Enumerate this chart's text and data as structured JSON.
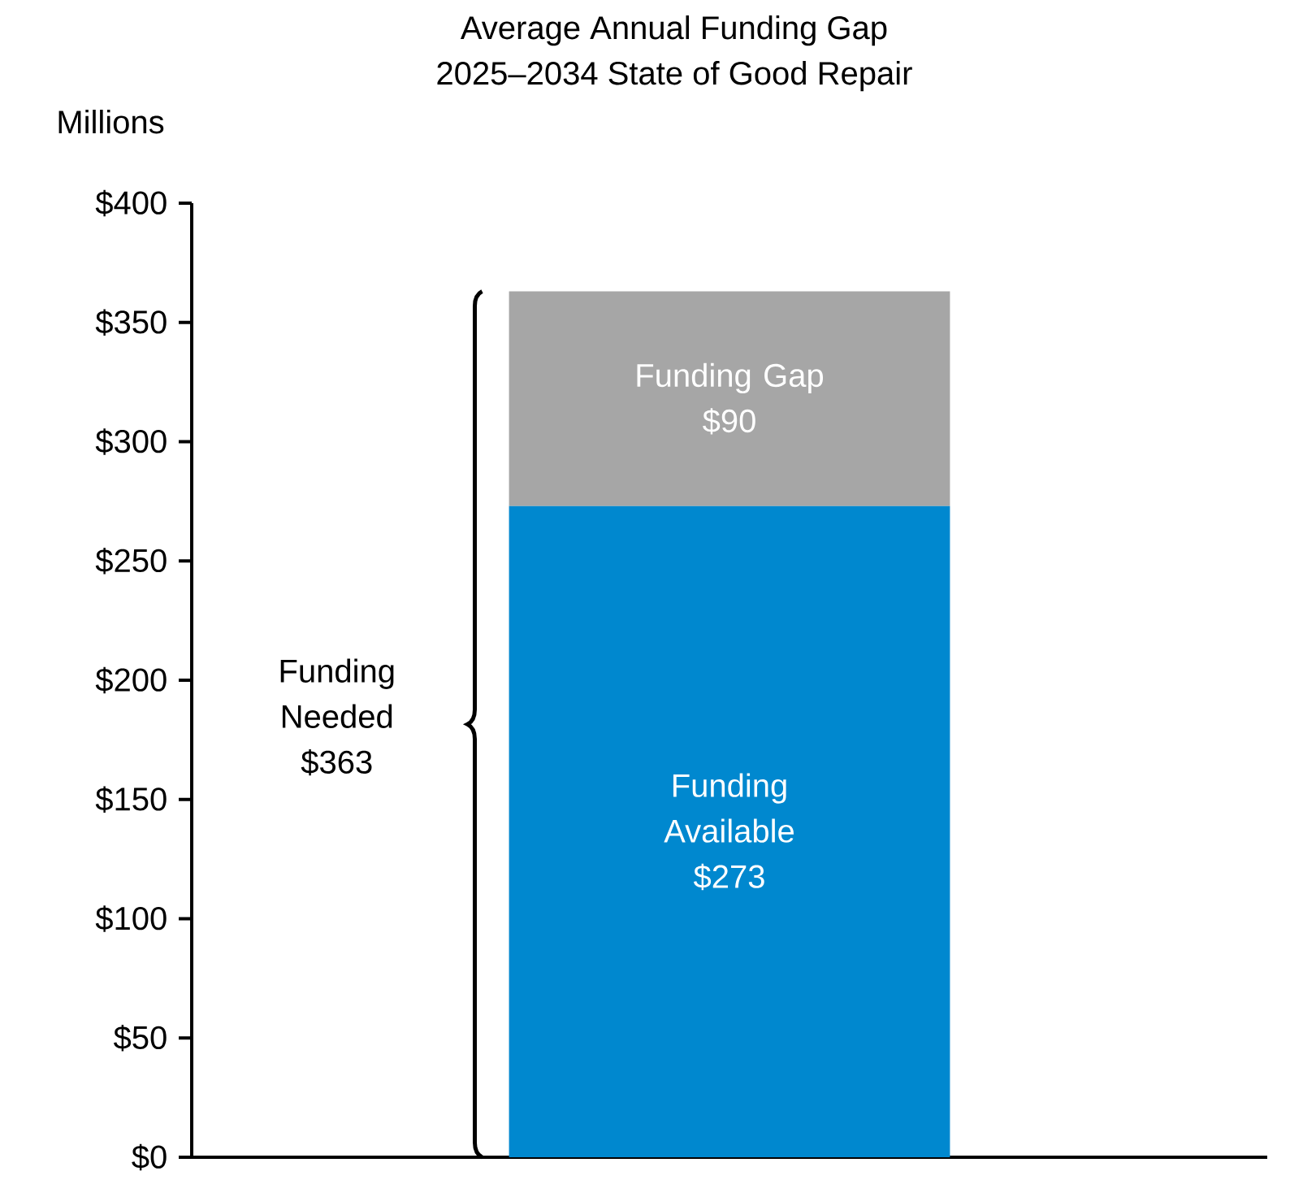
{
  "chart_data": {
    "type": "bar",
    "title": "Average Annual Funding Gap",
    "subtitle": "2025–2034 State of Good Repair",
    "ylabel": "Millions",
    "categories": [
      null
    ],
    "stacked": true,
    "series": [
      {
        "name": "Funding Available",
        "color": "#0088cf",
        "values": [
          273
        ],
        "value_labels": [
          "$273"
        ]
      },
      {
        "name": "Funding Gap",
        "color": "#a6a6a6",
        "values": [
          90
        ],
        "value_labels": [
          "$90"
        ]
      }
    ],
    "ylim": [
      0,
      400
    ],
    "yticks": [
      {
        "value": 0,
        "label": "$0"
      },
      {
        "value": 50,
        "label": "$50"
      },
      {
        "value": 100,
        "label": "$100"
      },
      {
        "value": 150,
        "label": "$150"
      },
      {
        "value": 200,
        "label": "$200"
      },
      {
        "value": 250,
        "label": "$250"
      },
      {
        "value": 300,
        "label": "$300"
      },
      {
        "value": 350,
        "label": "$350"
      },
      {
        "value": 400,
        "label": "$400"
      }
    ],
    "annotations": [
      "Funding Needed $363"
    ]
  }
}
